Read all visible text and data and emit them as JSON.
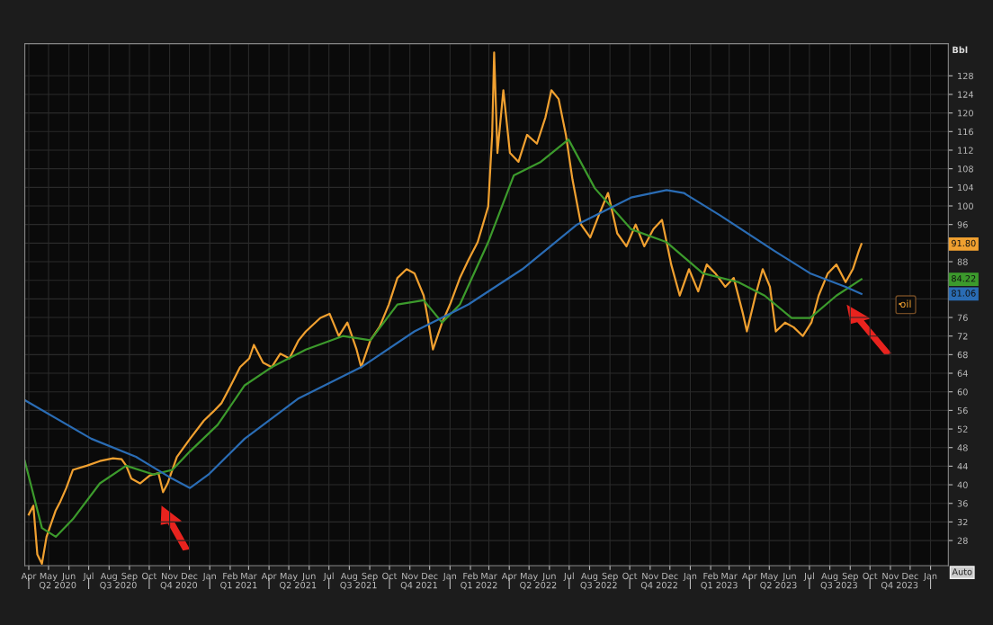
{
  "chart_data": {
    "type": "line",
    "ylabel": "Bbl",
    "xlim": [
      "2020-03-26",
      "2024-01-28"
    ],
    "ylim": [
      22.6,
      134.9
    ],
    "yticks": [
      28,
      32,
      36,
      40,
      44,
      48,
      52,
      56,
      60,
      64,
      68,
      72,
      76,
      {
        "value": 80,
        "label": null
      },
      {
        "value": 84,
        "label": null
      },
      88,
      {
        "value": 92,
        "label": null
      },
      96,
      100,
      104,
      108,
      112,
      116,
      120,
      124,
      128
    ],
    "xticks": [
      {
        "value": "2020-04-01",
        "label": "Apr"
      },
      {
        "value": "2020-05-01",
        "label": "May"
      },
      {
        "value": "2020-06-01",
        "label": "Jun"
      },
      {
        "value": "2020-07-01",
        "label": "Jul"
      },
      {
        "value": "2020-08-01",
        "label": "Aug"
      },
      {
        "value": "2020-09-01",
        "label": "Sep"
      },
      {
        "value": "2020-10-01",
        "label": "Oct"
      },
      {
        "value": "2020-11-01",
        "label": "Nov"
      },
      {
        "value": "2020-12-01",
        "label": "Dec"
      },
      {
        "value": "2021-01-01",
        "label": "Jan"
      },
      {
        "value": "2021-02-01",
        "label": "Feb"
      },
      {
        "value": "2021-03-01",
        "label": "Mar"
      },
      {
        "value": "2021-04-01",
        "label": "Apr"
      },
      {
        "value": "2021-05-01",
        "label": "May"
      },
      {
        "value": "2021-06-01",
        "label": "Jun"
      },
      {
        "value": "2021-07-01",
        "label": "Jul"
      },
      {
        "value": "2021-08-01",
        "label": "Aug"
      },
      {
        "value": "2021-09-01",
        "label": "Sep"
      },
      {
        "value": "2021-10-01",
        "label": "Oct"
      },
      {
        "value": "2021-11-01",
        "label": "Nov"
      },
      {
        "value": "2021-12-01",
        "label": "Dec"
      },
      {
        "value": "2022-01-01",
        "label": "Jan"
      },
      {
        "value": "2022-02-01",
        "label": "Feb"
      },
      {
        "value": "2022-03-01",
        "label": "Mar"
      },
      {
        "value": "2022-04-01",
        "label": "Apr"
      },
      {
        "value": "2022-05-01",
        "label": "May"
      },
      {
        "value": "2022-06-01",
        "label": "Jun"
      },
      {
        "value": "2022-07-01",
        "label": "Jul"
      },
      {
        "value": "2022-08-01",
        "label": "Aug"
      },
      {
        "value": "2022-09-01",
        "label": "Sep"
      },
      {
        "value": "2022-10-01",
        "label": "Oct"
      },
      {
        "value": "2022-11-01",
        "label": "Nov"
      },
      {
        "value": "2022-12-01",
        "label": "Dec"
      },
      {
        "value": "2023-01-01",
        "label": "Jan"
      },
      {
        "value": "2023-02-01",
        "label": "Feb"
      },
      {
        "value": "2023-03-01",
        "label": "Mar"
      },
      {
        "value": "2023-04-01",
        "label": "Apr"
      },
      {
        "value": "2023-05-01",
        "label": "May"
      },
      {
        "value": "2023-06-01",
        "label": "Jun"
      },
      {
        "value": "2023-07-01",
        "label": "Jul"
      },
      {
        "value": "2023-08-01",
        "label": "Aug"
      },
      {
        "value": "2023-09-01",
        "label": "Sep"
      },
      {
        "value": "2023-10-01",
        "label": "Oct"
      },
      {
        "value": "2023-11-01",
        "label": "Nov"
      },
      {
        "value": "2023-12-01",
        "label": "Dec"
      },
      {
        "value": "2024-01-01",
        "label": "Jan"
      }
    ],
    "x2lim": [
      "2020-03-26",
      "2024-01-28"
    ],
    "x2ticks": [
      {
        "value": "2020-04-01",
        "label": null
      },
      {
        "value": "2020-05-15",
        "label": "Q2 2020"
      },
      {
        "value": "2020-07-01",
        "label": null
      },
      {
        "value": "2020-08-15",
        "label": "Q3 2020"
      },
      {
        "value": "2020-10-01",
        "label": null
      },
      {
        "value": "2020-11-15",
        "label": "Q4 2020"
      },
      {
        "value": "2021-01-01",
        "label": null
      },
      {
        "value": "2021-02-14",
        "label": "Q1 2021"
      },
      {
        "value": "2021-04-01",
        "label": null
      },
      {
        "value": "2021-05-15",
        "label": "Q2 2021"
      },
      {
        "value": "2021-07-01",
        "label": null
      },
      {
        "value": "2021-08-15",
        "label": "Q3 2021"
      },
      {
        "value": "2021-10-01",
        "label": null
      },
      {
        "value": "2021-11-15",
        "label": "Q4 2021"
      },
      {
        "value": "2022-01-01",
        "label": null
      },
      {
        "value": "2022-02-14",
        "label": "Q1 2022"
      },
      {
        "value": "2022-04-01",
        "label": null
      },
      {
        "value": "2022-05-15",
        "label": "Q2 2022"
      },
      {
        "value": "2022-07-01",
        "label": null
      },
      {
        "value": "2022-08-15",
        "label": "Q3 2022"
      },
      {
        "value": "2022-10-01",
        "label": null
      },
      {
        "value": "2022-11-15",
        "label": "Q4 2022"
      },
      {
        "value": "2023-01-01",
        "label": null
      },
      {
        "value": "2023-02-14",
        "label": "Q1 2023"
      },
      {
        "value": "2023-04-01",
        "label": null
      },
      {
        "value": "2023-05-15",
        "label": "Q2 2023"
      },
      {
        "value": "2023-07-01",
        "label": null
      },
      {
        "value": "2023-08-15",
        "label": "Q3 2023"
      },
      {
        "value": "2023-10-01",
        "label": null
      },
      {
        "value": "2023-11-15",
        "label": "Q4 2023"
      },
      {
        "value": "2024-01-01",
        "label": null
      }
    ],
    "grid": true,
    "legend": "right",
    "series": [
      {
        "name": "oil",
        "color": "#f0a030",
        "x": [
          "2020-04-01",
          "2020-04-08",
          "2020-04-14",
          "2020-04-21",
          "2020-04-28",
          "2020-05-12",
          "2020-05-19",
          "2020-05-28",
          "2020-06-07",
          "2020-06-28",
          "2020-07-18",
          "2020-08-07",
          "2020-08-20",
          "2020-08-27",
          "2020-09-04",
          "2020-09-17",
          "2020-10-02",
          "2020-10-15",
          "2020-10-22",
          "2020-10-29",
          "2020-11-12",
          "2020-12-02",
          "2020-12-23",
          "2021-01-06",
          "2021-01-19",
          "2021-02-02",
          "2021-02-16",
          "2021-03-02",
          "2021-03-09",
          "2021-03-23",
          "2021-04-05",
          "2021-04-18",
          "2021-05-02",
          "2021-05-16",
          "2021-05-27",
          "2021-06-18",
          "2021-07-02",
          "2021-07-16",
          "2021-07-29",
          "2021-08-12",
          "2021-08-19",
          "2021-09-02",
          "2021-09-16",
          "2021-09-30",
          "2021-10-13",
          "2021-10-27",
          "2021-11-08",
          "2021-11-22",
          "2021-11-28",
          "2021-12-06",
          "2021-12-20",
          "2022-01-01",
          "2022-01-16",
          "2022-01-29",
          "2022-02-12",
          "2022-02-28",
          "2022-03-06",
          "2022-03-09",
          "2022-03-14",
          "2022-03-23",
          "2022-04-02",
          "2022-04-15",
          "2022-04-28",
          "2022-05-13",
          "2022-05-26",
          "2022-06-04",
          "2022-06-15",
          "2022-06-26",
          "2022-07-06",
          "2022-07-19",
          "2022-08-02",
          "2022-08-15",
          "2022-08-29",
          "2022-09-12",
          "2022-09-26",
          "2022-10-10",
          "2022-10-23",
          "2022-11-06",
          "2022-11-19",
          "2022-12-03",
          "2022-12-16",
          "2022-12-30",
          "2023-01-13",
          "2023-01-26",
          "2023-02-08",
          "2023-02-23",
          "2023-03-08",
          "2023-03-22",
          "2023-03-28",
          "2023-04-10",
          "2023-04-21",
          "2023-05-02",
          "2023-05-11",
          "2023-05-25",
          "2023-06-07",
          "2023-06-21",
          "2023-07-04",
          "2023-07-15",
          "2023-07-29",
          "2023-08-11",
          "2023-08-25",
          "2023-09-05",
          "2023-09-14",
          "2023-09-18"
        ],
        "values": [
          33.6,
          35.5,
          25,
          23,
          28.8,
          34.5,
          36.4,
          39.3,
          43.2,
          44.1,
          45.1,
          45.7,
          45.5,
          44.1,
          41.3,
          40.3,
          42,
          42.5,
          38.4,
          40.3,
          46,
          49.9,
          53.8,
          55.7,
          57.6,
          61.4,
          65.3,
          67.2,
          70.1,
          66.3,
          65.3,
          68.2,
          67.2,
          71.1,
          73,
          75.9,
          76.8,
          72,
          74.9,
          69.1,
          65.3,
          71.1,
          74,
          78.8,
          84.5,
          86.4,
          85.5,
          80.7,
          75.9,
          69.1,
          74.9,
          78.8,
          84.5,
          88.4,
          92.2,
          99.9,
          115.3,
          133,
          111.4,
          124.9,
          111.4,
          109.5,
          115.3,
          113.4,
          119.1,
          124.9,
          123,
          115.3,
          105.7,
          96,
          93.2,
          98,
          102.8,
          94.1,
          91.3,
          96,
          91.3,
          95,
          97,
          87.4,
          80.7,
          86.4,
          81.6,
          87.4,
          85.5,
          82.6,
          84.5,
          76.8,
          73,
          80.7,
          86.4,
          82.6,
          73,
          74.9,
          73.9,
          72,
          74.9,
          80.7,
          85.5,
          87.4,
          83.6,
          86.4,
          90.3,
          91.8
        ]
      },
      {
        "color": "#3c9a2c",
        "x": [
          "2020-03-26",
          "2020-04-21",
          "2020-05-12",
          "2020-06-07",
          "2020-07-18",
          "2020-08-27",
          "2020-10-08",
          "2020-11-05",
          "2020-12-02",
          "2021-01-13",
          "2021-02-23",
          "2021-04-05",
          "2021-05-27",
          "2021-07-22",
          "2021-09-02",
          "2021-10-13",
          "2021-11-22",
          "2021-12-20",
          "2022-01-16",
          "2022-02-28",
          "2022-04-08",
          "2022-05-19",
          "2022-06-30",
          "2022-08-09",
          "2022-10-03",
          "2022-11-26",
          "2023-01-20",
          "2023-03-15",
          "2023-04-24",
          "2023-06-04",
          "2023-07-02",
          "2023-08-11",
          "2023-09-18"
        ],
        "values": [
          45.1,
          30.7,
          28.8,
          32.6,
          40.3,
          44.1,
          42.2,
          43.2,
          47.2,
          52.9,
          61.4,
          65.3,
          69.1,
          72,
          71.1,
          78.8,
          79.7,
          74.9,
          78.8,
          92.2,
          106.6,
          109.5,
          114.3,
          103.8,
          95,
          92.2,
          85.5,
          83.6,
          80.7,
          75.9,
          75.9,
          80.7,
          84.22
        ]
      },
      {
        "color": "#2a6cb4",
        "x": [
          "2020-03-26",
          "2020-07-05",
          "2020-09-11",
          "2020-11-05",
          "2020-12-02",
          "2020-12-30",
          "2021-02-23",
          "2021-05-16",
          "2021-08-19",
          "2021-11-08",
          "2022-01-29",
          "2022-04-21",
          "2022-07-13",
          "2022-10-03",
          "2022-11-26",
          "2022-12-22",
          "2023-02-15",
          "2023-05-09",
          "2023-07-02",
          "2023-08-25",
          "2023-09-18"
        ],
        "values": [
          58.2,
          49.9,
          46,
          41.3,
          39.3,
          42.2,
          49.9,
          58.6,
          65.3,
          73,
          78.8,
          86.4,
          96,
          101.8,
          103.4,
          102.8,
          98,
          90.3,
          85.5,
          82.6,
          81.06
        ]
      }
    ],
    "annotations": [
      "91.80",
      "84.22",
      "81.06",
      "Auto"
    ]
  }
}
